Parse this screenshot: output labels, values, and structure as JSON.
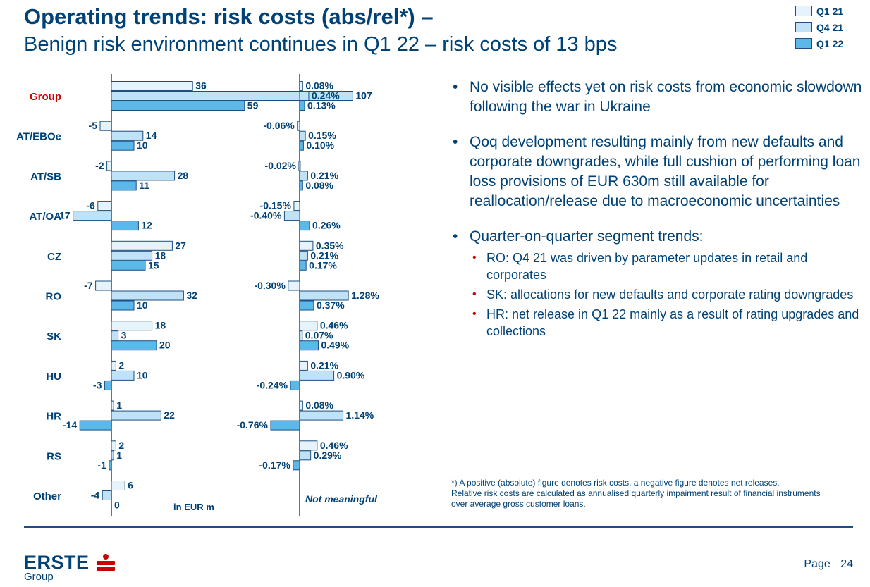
{
  "header": {
    "title": "Operating trends: risk costs (abs/rel*) –",
    "subtitle": "Benign risk environment continues in Q1 22 – risk costs of 13 bps"
  },
  "colors": {
    "navy": "#004176",
    "bar_outline": "#1d4f82",
    "q1_21": "#e7f3fb",
    "q4_21": "#bfe2f7",
    "q1_22": "#5cb8e8",
    "accent_red": "#cc0000"
  },
  "legend": [
    {
      "label": "Q1 21",
      "color": "#e7f3fb"
    },
    {
      "label": "Q4 21",
      "color": "#bfe2f7"
    },
    {
      "label": "Q1 22",
      "color": "#5cb8e8"
    }
  ],
  "chart_data": [
    {
      "type": "bar",
      "orientation": "horizontal",
      "categories": [
        "Group",
        "AT/EBOe",
        "AT/SB",
        "AT/OA",
        "CZ",
        "RO",
        "SK",
        "HU",
        "HR",
        "RS",
        "Other"
      ],
      "highlighted_category": "Group",
      "unit_label": "in EUR m",
      "series": [
        {
          "name": "Q1 21",
          "values": [
            36,
            -5,
            -2,
            -6,
            27,
            -7,
            18,
            2,
            1,
            2,
            6
          ]
        },
        {
          "name": "Q4 21",
          "values": [
            107,
            14,
            28,
            -17,
            18,
            32,
            3,
            10,
            22,
            1,
            -4
          ]
        },
        {
          "name": "Q1 22",
          "values": [
            59,
            10,
            11,
            12,
            15,
            10,
            20,
            -3,
            -14,
            -1,
            0
          ]
        }
      ],
      "labels": [
        [
          "36",
          "107",
          "59"
        ],
        [
          "-5",
          "14",
          "10"
        ],
        [
          "-2",
          "28",
          "11"
        ],
        [
          "-6",
          "-17",
          "12"
        ],
        [
          "27",
          "18",
          "15"
        ],
        [
          "-7",
          "32",
          "10"
        ],
        [
          "18",
          "3",
          "20"
        ],
        [
          "2",
          "10",
          "-3"
        ],
        [
          "1",
          "22",
          "-14"
        ],
        [
          "2",
          "1",
          "-1"
        ],
        [
          "6",
          "-4",
          "0"
        ]
      ],
      "axis_break": "107"
    },
    {
      "type": "bar",
      "orientation": "horizontal",
      "categories": [
        "Group",
        "AT/EBOe",
        "AT/SB",
        "AT/OA",
        "CZ",
        "RO",
        "SK",
        "HU",
        "HR",
        "RS",
        "Other"
      ],
      "unit_label": "Not meaningful",
      "series": [
        {
          "name": "Q1 21",
          "values": [
            0.08,
            -0.06,
            -0.02,
            -0.15,
            0.35,
            -0.3,
            0.46,
            0.21,
            0.08,
            0.46,
            null
          ]
        },
        {
          "name": "Q4 21",
          "values": [
            0.24,
            0.15,
            0.21,
            -0.4,
            0.21,
            1.28,
            0.07,
            0.9,
            1.14,
            0.29,
            null
          ]
        },
        {
          "name": "Q1 22",
          "values": [
            0.13,
            0.1,
            0.08,
            0.26,
            0.17,
            0.37,
            0.49,
            -0.24,
            -0.76,
            -0.17,
            null
          ]
        }
      ],
      "labels": [
        [
          "0.08%",
          "0.24%",
          "0.13%"
        ],
        [
          "-0.06%",
          "0.15%",
          "0.10%"
        ],
        [
          "-0.02%",
          "0.21%",
          "0.08%"
        ],
        [
          "-0.15%",
          "-0.40%",
          "0.26%"
        ],
        [
          "0.35%",
          "0.21%",
          "0.17%"
        ],
        [
          "-0.30%",
          "1.28%",
          "0.37%"
        ],
        [
          "0.46%",
          "0.07%",
          "0.49%"
        ],
        [
          "0.21%",
          "0.90%",
          "-0.24%"
        ],
        [
          "0.08%",
          "1.14%",
          "-0.76%"
        ],
        [
          "0.46%",
          "0.29%",
          "-0.17%"
        ],
        [
          null,
          null,
          null
        ]
      ]
    }
  ],
  "bullets": [
    {
      "text": "No visible effects yet on risk costs from economic slowdown following the war in Ukraine"
    },
    {
      "text": "Qoq development resulting mainly from new defaults and corporate downgrades, while full cushion of performing loan loss provisions of EUR 630m still available for reallocation/release due to macroeconomic uncertainties"
    },
    {
      "text": "Quarter-on-quarter segment trends:"
    }
  ],
  "sub_bullets": [
    {
      "text": "RO: Q4 21 was driven by parameter updates in retail and corporates"
    },
    {
      "text": "SK: allocations for new defaults and corporate rating downgrades"
    },
    {
      "text": "HR: net release in Q1 22 mainly as a result of rating upgrades and collections"
    }
  ],
  "footnote": {
    "line1": "*) A positive (absolute) figure denotes risk costs, a negative figure denotes net releases.",
    "line2": "Relative risk costs are calculated as annualised quarterly impairment result of financial instruments over average gross customer loans."
  },
  "footer": {
    "logo_text": "ERSTE",
    "logo_sub": "Group",
    "page_label": "Page",
    "page_number": "24"
  }
}
